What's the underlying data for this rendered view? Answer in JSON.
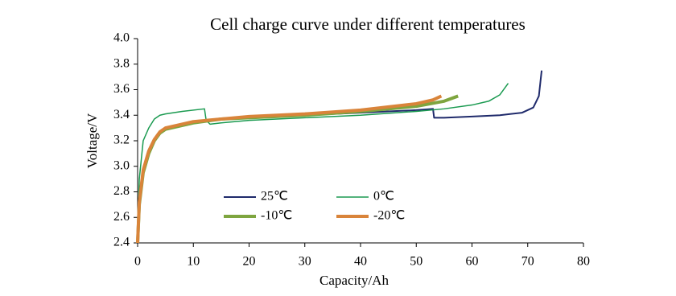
{
  "chart_data": {
    "type": "line",
    "title": "Cell charge curve under different temperatures",
    "x_label": "Capacity/Ah",
    "y_label": "Voltage/V",
    "xlim": [
      0,
      80
    ],
    "xticks": [
      0,
      10,
      20,
      30,
      40,
      50,
      60,
      70,
      80
    ],
    "ylim": [
      2.4,
      4.0
    ],
    "yticks": [
      2.4,
      2.6,
      2.8,
      {
        "value": 3.0,
        "label": "3.0"
      },
      3.2,
      3.4,
      3.6,
      3.8,
      {
        "value": 4.0,
        "label": "4.0"
      }
    ],
    "grid": false,
    "legend": "bottom",
    "series": [
      {
        "name": "25℃",
        "color": "#1f2a6b",
        "line_width": 2,
        "x": [
          0,
          0.3,
          1,
          2,
          3,
          4,
          5,
          7,
          10,
          15,
          20,
          30,
          40,
          50,
          53,
          53.2,
          55,
          60,
          65,
          69,
          71,
          72,
          72.5
        ],
        "values": [
          2.4,
          2.7,
          2.95,
          3.1,
          3.2,
          3.26,
          3.29,
          3.31,
          3.34,
          3.37,
          3.38,
          3.4,
          3.42,
          3.44,
          3.45,
          3.38,
          3.38,
          3.39,
          3.4,
          3.42,
          3.46,
          3.55,
          3.75
        ]
      },
      {
        "name": "0℃",
        "color": "#1a9a50",
        "line_width": 1.5,
        "x": [
          0,
          0.3,
          1,
          2,
          3,
          4,
          5,
          8,
          12,
          12.3,
          13,
          15,
          20,
          30,
          40,
          50,
          55,
          60,
          63,
          65,
          66.5
        ],
        "values": [
          2.4,
          2.9,
          3.2,
          3.3,
          3.37,
          3.4,
          3.41,
          3.43,
          3.45,
          3.36,
          3.33,
          3.34,
          3.36,
          3.38,
          3.4,
          3.43,
          3.45,
          3.48,
          3.51,
          3.56,
          3.65
        ]
      },
      {
        "name": "-10℃",
        "color": "#7ea53f",
        "line_width": 4,
        "x": [
          0,
          0.3,
          1,
          2,
          3,
          4,
          5,
          7,
          10,
          15,
          20,
          30,
          40,
          50,
          55,
          57.5
        ],
        "values": [
          2.4,
          2.7,
          2.95,
          3.1,
          3.2,
          3.26,
          3.29,
          3.31,
          3.34,
          3.37,
          3.38,
          3.4,
          3.43,
          3.47,
          3.51,
          3.55
        ]
      },
      {
        "name": "-20℃",
        "color": "#d9843a",
        "line_width": 4,
        "x": [
          0,
          0.3,
          1,
          2,
          3,
          4,
          5,
          7,
          10,
          15,
          20,
          30,
          40,
          50,
          53,
          54.5
        ],
        "values": [
          2.4,
          2.72,
          2.97,
          3.12,
          3.21,
          3.27,
          3.3,
          3.32,
          3.35,
          3.37,
          3.39,
          3.41,
          3.44,
          3.49,
          3.52,
          3.55
        ]
      }
    ]
  }
}
